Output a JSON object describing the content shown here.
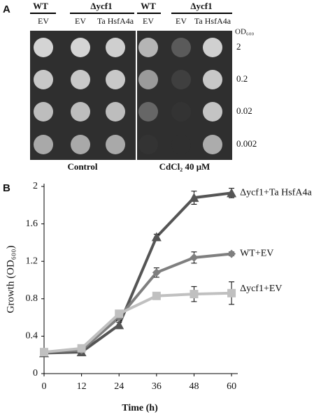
{
  "panel_a": {
    "label": "A",
    "header_groups": [
      "WT",
      "Δycf1",
      "WT",
      "Δycf1"
    ],
    "columns": [
      "EV",
      "EV",
      "Ta HsfA4a",
      "EV",
      "EV",
      "Ta HsfA4a"
    ],
    "dilution_header": "OD₆₀₀",
    "dilutions": [
      "2",
      "0.2",
      "0.02",
      "0.002"
    ],
    "conditions": [
      "Control",
      "CdCl₂ 40 μM"
    ]
  },
  "chart_data": {
    "type": "line",
    "panel_label": "B",
    "x_label": "Time (h)",
    "y_label": "Growth (OD₆₀₀)",
    "x": [
      0,
      12,
      24,
      36,
      48,
      60
    ],
    "xlim": [
      0,
      62
    ],
    "xticks": [
      0,
      12,
      24,
      36,
      48,
      60
    ],
    "ylim": [
      0,
      2
    ],
    "yticks": [
      0,
      0.4,
      0.8,
      1.2,
      1.6,
      2
    ],
    "series": [
      {
        "name": "Δycf1+Ta HsfA4a",
        "color": "#555555",
        "marker": "triangle",
        "values": [
          0.22,
          0.23,
          0.52,
          1.46,
          1.88,
          1.93
        ],
        "errors": [
          0.02,
          0.02,
          0.03,
          0.03,
          0.07,
          0.05
        ]
      },
      {
        "name": "WT+EV",
        "color": "#7f7f7f",
        "marker": "diamond",
        "values": [
          0.23,
          0.25,
          0.6,
          1.08,
          1.24,
          1.28
        ],
        "errors": [
          0.02,
          0.02,
          0.03,
          0.05,
          0.06,
          0.02
        ]
      },
      {
        "name": "Δycf1+EV",
        "color": "#c0c0c0",
        "marker": "square",
        "values": [
          0.23,
          0.27,
          0.64,
          0.83,
          0.85,
          0.86
        ],
        "errors": [
          0.02,
          0.02,
          0.03,
          0.03,
          0.08,
          0.12
        ]
      }
    ]
  }
}
